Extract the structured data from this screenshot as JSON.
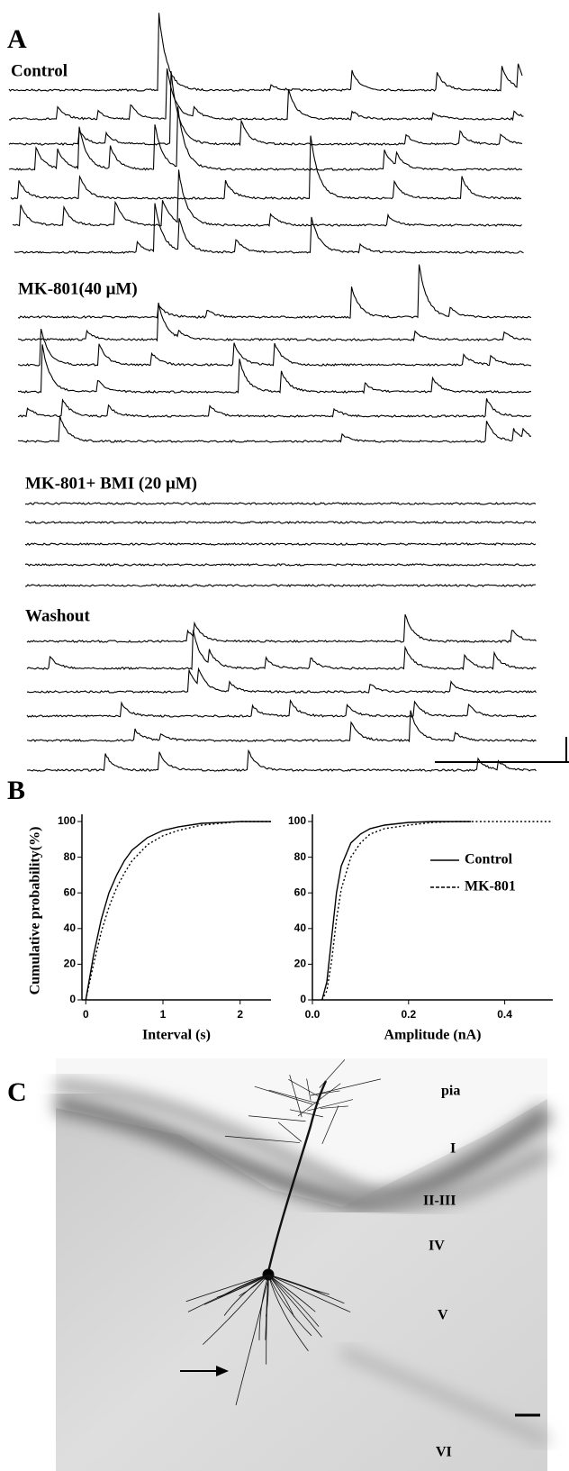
{
  "panel_a": {
    "label": "A",
    "conditions": [
      "Control",
      "MK-801(40 μM)",
      "MK-801+ BMI (20 μM)",
      "Washout"
    ]
  },
  "panel_b": {
    "label": "B"
  },
  "chart_data": [
    {
      "type": "line",
      "xlabel": "Interval (s)",
      "ylabel": "Cumulative probability(%)",
      "xlim": [
        -0.05,
        2.4
      ],
      "ylim": [
        0,
        100
      ],
      "xticks": [
        0,
        1,
        2
      ],
      "yticks": [
        0,
        20,
        40,
        60,
        80,
        100
      ],
      "legend": false,
      "series": [
        {
          "color": "#000000",
          "style": "solid",
          "x": [
            0,
            0.1,
            0.2,
            0.3,
            0.4,
            0.5,
            0.6,
            0.8,
            1,
            1.2,
            1.5,
            2,
            2.4
          ],
          "values": [
            0,
            25,
            45,
            60,
            70,
            78,
            84,
            91,
            95,
            97,
            99,
            100,
            100
          ]
        },
        {
          "color": "#000000",
          "style": "dotted",
          "x": [
            0,
            0.1,
            0.2,
            0.3,
            0.4,
            0.5,
            0.6,
            0.8,
            1,
            1.2,
            1.5,
            2,
            2.4
          ],
          "values": [
            0,
            20,
            38,
            52,
            63,
            71,
            78,
            87,
            92,
            95,
            98,
            100,
            100
          ]
        }
      ]
    },
    {
      "type": "line",
      "xlabel": "Amplitude (nA)",
      "xlim": [
        0,
        0.5
      ],
      "ylim": [
        0,
        100
      ],
      "xticks": [
        {
          "value": 0,
          "label": "0.0"
        },
        0.2,
        0.4
      ],
      "yticks": [
        0,
        20,
        40,
        60,
        80,
        100
      ],
      "legend": "right",
      "series": [
        {
          "name": "Control",
          "color": "#000000",
          "style": "solid",
          "x": [
            0.02,
            0.03,
            0.04,
            0.05,
            0.06,
            0.08,
            0.1,
            0.12,
            0.15,
            0.2,
            0.25,
            0.33
          ],
          "values": [
            0,
            10,
            35,
            60,
            75,
            88,
            93,
            96,
            98,
            99.5,
            100,
            100
          ]
        },
        {
          "name": "MK-801",
          "color": "#000000",
          "style": "dotted",
          "x": [
            0.02,
            0.03,
            0.04,
            0.05,
            0.06,
            0.08,
            0.1,
            0.12,
            0.15,
            0.2,
            0.25,
            0.3,
            0.5
          ],
          "values": [
            0,
            5,
            22,
            45,
            62,
            80,
            88,
            93,
            96,
            98,
            99.5,
            100,
            100
          ]
        }
      ]
    }
  ],
  "panel_c": {
    "label": "C",
    "layers": [
      "pia",
      "I",
      "II-III",
      "IV",
      "V",
      "VI"
    ]
  }
}
